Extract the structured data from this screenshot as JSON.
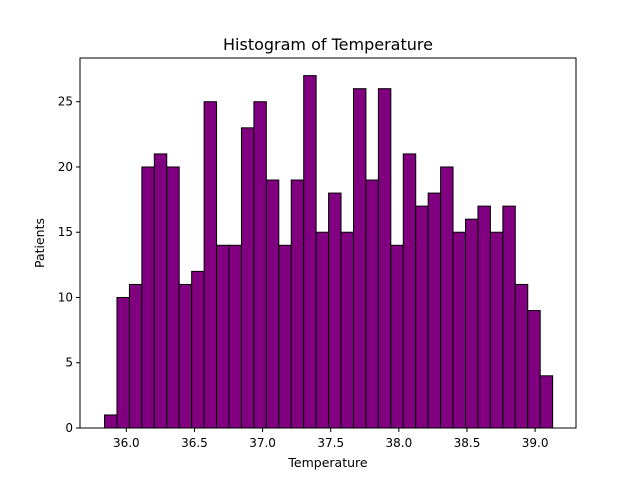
{
  "chart_data": {
    "type": "bar",
    "title": "Histogram of Temperature",
    "xlabel": "Temperature",
    "ylabel": "Patients",
    "bar_color": "#800080",
    "edge_color": "#000000",
    "bins": {
      "start": 35.84,
      "width": 0.09135,
      "counts": [
        1,
        10,
        11,
        20,
        21,
        20,
        11,
        12,
        25,
        14,
        14,
        23,
        25,
        19,
        14,
        19,
        27,
        15,
        18,
        15,
        26,
        19,
        26,
        14,
        21,
        17,
        18,
        20,
        15,
        16,
        17,
        15,
        17,
        11,
        9,
        4
      ]
    },
    "xlim": [
      35.66,
      39.3
    ],
    "ylim": [
      0,
      28.35
    ],
    "xticks": [
      36.0,
      36.5,
      37.0,
      37.5,
      38.0,
      38.5,
      39.0
    ],
    "xtick_labels": [
      "36.0",
      "36.5",
      "37.0",
      "37.5",
      "38.0",
      "38.5",
      "39.0"
    ],
    "yticks": [
      0,
      5,
      10,
      15,
      20,
      25
    ],
    "ytick_labels": [
      "0",
      "5",
      "10",
      "15",
      "20",
      "25"
    ],
    "grid": false,
    "legend": "none"
  }
}
